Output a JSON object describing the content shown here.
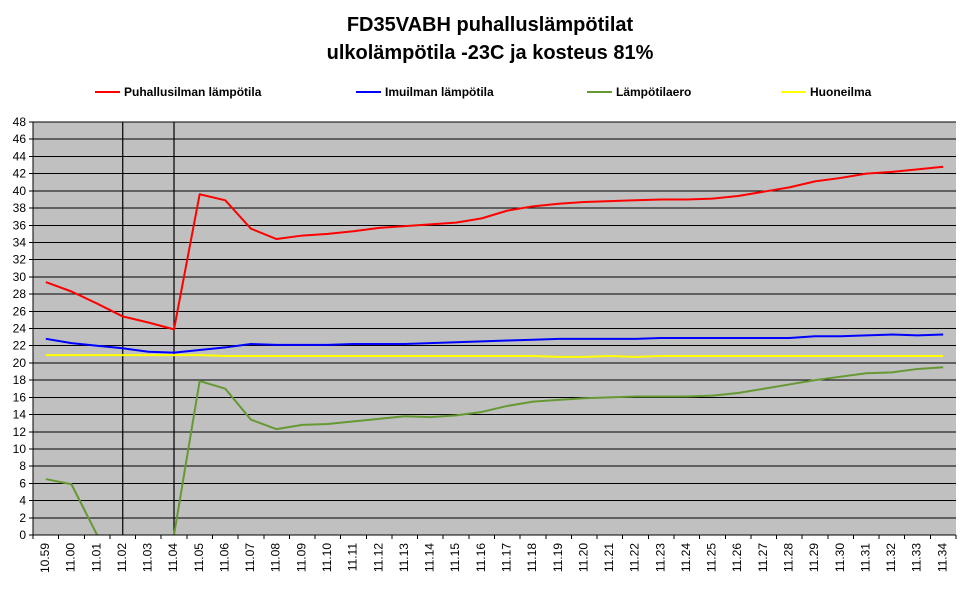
{
  "chart_data": {
    "type": "line",
    "title": [
      "FD35VABH  puhalluslämpötilat",
      "ulkolämpötila  -23C ja kosteus 81%"
    ],
    "xlabel": "",
    "ylabel": "",
    "ylim": [
      0,
      48
    ],
    "yticks": [
      0,
      2,
      4,
      6,
      8,
      10,
      12,
      14,
      16,
      18,
      20,
      22,
      24,
      26,
      28,
      30,
      32,
      34,
      36,
      38,
      40,
      42,
      44,
      46,
      48
    ],
    "grid": true,
    "background_color": "#c0c0c0",
    "legend_position": "top",
    "x_unit": "minutes",
    "x_range": [
      "10.59",
      "11.34"
    ],
    "x_tick_labels": [
      "10.59",
      "11.00",
      "11.01",
      "11.02",
      "11.03",
      "11.04",
      "11.05",
      "11.06",
      "11.07",
      "11.08",
      "11.09",
      "11.10",
      "11.11",
      "11.12",
      "11.13",
      "11.14",
      "11.15",
      "11.16",
      "11.17",
      "11.18",
      "11.19",
      "11.20",
      "11.21",
      "11.22",
      "11.23",
      "11.24",
      "11.25",
      "11.26",
      "11.27",
      "11.28",
      "11.29",
      "11.30",
      "11.31",
      "11.32",
      "11.33",
      "11.34"
    ],
    "vertical_markers": [
      "11.02",
      "11.04"
    ],
    "series": [
      {
        "name": "Puhallusilman lämpötila",
        "color": "#ff0000",
        "points": [
          [
            "10.59",
            29.4
          ],
          [
            "11.00",
            28.3
          ],
          [
            "11.01",
            26.9
          ],
          [
            "11.02",
            25.4
          ],
          [
            "11.03",
            24.7
          ],
          [
            "11.04",
            23.9
          ],
          [
            "11.05",
            39.6
          ],
          [
            "11.06",
            38.9
          ],
          [
            "11.07",
            35.6
          ],
          [
            "11.08",
            34.4
          ],
          [
            "11.09",
            34.8
          ],
          [
            "11.10",
            35.0
          ],
          [
            "11.11",
            35.3
          ],
          [
            "11.12",
            35.7
          ],
          [
            "11.13",
            35.9
          ],
          [
            "11.14",
            36.1
          ],
          [
            "11.15",
            36.3
          ],
          [
            "11.16",
            36.8
          ],
          [
            "11.17",
            37.7
          ],
          [
            "11.18",
            38.2
          ],
          [
            "11.19",
            38.5
          ],
          [
            "11.20",
            38.7
          ],
          [
            "11.21",
            38.8
          ],
          [
            "11.22",
            38.9
          ],
          [
            "11.23",
            39.0
          ],
          [
            "11.24",
            39.0
          ],
          [
            "11.25",
            39.1
          ],
          [
            "11.26",
            39.4
          ],
          [
            "11.27",
            39.9
          ],
          [
            "11.28",
            40.4
          ],
          [
            "11.29",
            41.1
          ],
          [
            "11.30",
            41.5
          ],
          [
            "11.31",
            42.0
          ],
          [
            "11.32",
            42.2
          ],
          [
            "11.33",
            42.5
          ],
          [
            "11.34",
            42.8
          ]
        ]
      },
      {
        "name": "Imuilman lämpötila",
        "color": "#0000ff",
        "points": [
          [
            "10.59",
            22.8
          ],
          [
            "11.00",
            22.3
          ],
          [
            "11.01",
            22.0
          ],
          [
            "11.02",
            21.7
          ],
          [
            "11.03",
            21.3
          ],
          [
            "11.04",
            21.2
          ],
          [
            "11.05",
            21.5
          ],
          [
            "11.06",
            21.8
          ],
          [
            "11.07",
            22.2
          ],
          [
            "11.08",
            22.1
          ],
          [
            "11.09",
            22.1
          ],
          [
            "11.10",
            22.1
          ],
          [
            "11.11",
            22.2
          ],
          [
            "11.12",
            22.2
          ],
          [
            "11.13",
            22.2
          ],
          [
            "11.14",
            22.3
          ],
          [
            "11.15",
            22.4
          ],
          [
            "11.16",
            22.5
          ],
          [
            "11.17",
            22.6
          ],
          [
            "11.18",
            22.7
          ],
          [
            "11.19",
            22.8
          ],
          [
            "11.20",
            22.8
          ],
          [
            "11.21",
            22.8
          ],
          [
            "11.22",
            22.8
          ],
          [
            "11.23",
            22.9
          ],
          [
            "11.24",
            22.9
          ],
          [
            "11.25",
            22.9
          ],
          [
            "11.26",
            22.9
          ],
          [
            "11.27",
            22.9
          ],
          [
            "11.28",
            22.9
          ],
          [
            "11.29",
            23.1
          ],
          [
            "11.30",
            23.1
          ],
          [
            "11.31",
            23.2
          ],
          [
            "11.32",
            23.3
          ],
          [
            "11.33",
            23.2
          ],
          [
            "11.34",
            23.3
          ]
        ]
      },
      {
        "name": "Lämpötilaero",
        "color": "#669933",
        "points": [
          [
            "10.59",
            6.5
          ],
          [
            "11.00",
            5.9
          ],
          [
            "11.01",
            0.0
          ],
          [
            "11.02",
            -4.0
          ],
          [
            "11.03",
            -4.0
          ],
          [
            "11.04",
            0.0
          ],
          [
            "11.05",
            17.9
          ],
          [
            "11.06",
            17.0
          ],
          [
            "11.07",
            13.4
          ],
          [
            "11.08",
            12.3
          ],
          [
            "11.09",
            12.8
          ],
          [
            "11.10",
            12.9
          ],
          [
            "11.11",
            13.2
          ],
          [
            "11.12",
            13.5
          ],
          [
            "11.13",
            13.8
          ],
          [
            "11.14",
            13.7
          ],
          [
            "11.15",
            13.9
          ],
          [
            "11.16",
            14.3
          ],
          [
            "11.17",
            15.0
          ],
          [
            "11.18",
            15.5
          ],
          [
            "11.19",
            15.7
          ],
          [
            "11.20",
            15.9
          ],
          [
            "11.21",
            16.0
          ],
          [
            "11.22",
            16.1
          ],
          [
            "11.23",
            16.1
          ],
          [
            "11.24",
            16.1
          ],
          [
            "11.25",
            16.2
          ],
          [
            "11.26",
            16.5
          ],
          [
            "11.27",
            17.0
          ],
          [
            "11.28",
            17.5
          ],
          [
            "11.29",
            18.0
          ],
          [
            "11.30",
            18.4
          ],
          [
            "11.31",
            18.8
          ],
          [
            "11.32",
            18.9
          ],
          [
            "11.33",
            19.3
          ],
          [
            "11.34",
            19.5
          ]
        ]
      },
      {
        "name": "Huoneilma",
        "color": "#ffff00",
        "points": [
          [
            "10.59",
            20.9
          ],
          [
            "11.00",
            20.9
          ],
          [
            "11.01",
            20.9
          ],
          [
            "11.02",
            20.9
          ],
          [
            "11.03",
            20.9
          ],
          [
            "11.04",
            20.9
          ],
          [
            "11.05",
            20.9
          ],
          [
            "11.06",
            20.8
          ],
          [
            "11.07",
            20.8
          ],
          [
            "11.08",
            20.8
          ],
          [
            "11.09",
            20.8
          ],
          [
            "11.10",
            20.8
          ],
          [
            "11.11",
            20.8
          ],
          [
            "11.12",
            20.8
          ],
          [
            "11.13",
            20.8
          ],
          [
            "11.14",
            20.8
          ],
          [
            "11.15",
            20.8
          ],
          [
            "11.16",
            20.8
          ],
          [
            "11.17",
            20.8
          ],
          [
            "11.18",
            20.8
          ],
          [
            "11.19",
            20.7
          ],
          [
            "11.20",
            20.7
          ],
          [
            "11.21",
            20.8
          ],
          [
            "11.22",
            20.7
          ],
          [
            "11.23",
            20.8
          ],
          [
            "11.24",
            20.8
          ],
          [
            "11.25",
            20.8
          ],
          [
            "11.26",
            20.8
          ],
          [
            "11.27",
            20.8
          ],
          [
            "11.28",
            20.8
          ],
          [
            "11.29",
            20.8
          ],
          [
            "11.30",
            20.8
          ],
          [
            "11.31",
            20.8
          ],
          [
            "11.32",
            20.8
          ],
          [
            "11.33",
            20.8
          ],
          [
            "11.34",
            20.8
          ]
        ]
      }
    ]
  }
}
